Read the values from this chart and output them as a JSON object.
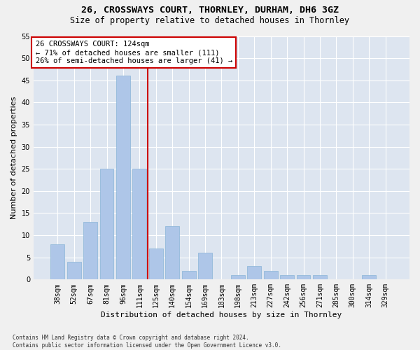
{
  "title_line1": "26, CROSSWAYS COURT, THORNLEY, DURHAM, DH6 3GZ",
  "title_line2": "Size of property relative to detached houses in Thornley",
  "xlabel": "Distribution of detached houses by size in Thornley",
  "ylabel": "Number of detached properties",
  "footnote": "Contains HM Land Registry data © Crown copyright and database right 2024.\nContains public sector information licensed under the Open Government Licence v3.0.",
  "categories": [
    "38sqm",
    "52sqm",
    "67sqm",
    "81sqm",
    "96sqm",
    "111sqm",
    "125sqm",
    "140sqm",
    "154sqm",
    "169sqm",
    "183sqm",
    "198sqm",
    "213sqm",
    "227sqm",
    "242sqm",
    "256sqm",
    "271sqm",
    "285sqm",
    "300sqm",
    "314sqm",
    "329sqm"
  ],
  "values": [
    8,
    4,
    13,
    25,
    46,
    25,
    7,
    12,
    2,
    6,
    0,
    1,
    3,
    2,
    1,
    1,
    1,
    0,
    0,
    1,
    0
  ],
  "bar_color": "#aec6e8",
  "bar_edge_color": "#8ab4d8",
  "vline_x": 5.5,
  "vline_color": "#cc0000",
  "annotation_text": "26 CROSSWAYS COURT: 124sqm\n← 71% of detached houses are smaller (111)\n26% of semi-detached houses are larger (41) →",
  "ylim": [
    0,
    55
  ],
  "yticks": [
    0,
    5,
    10,
    15,
    20,
    25,
    30,
    35,
    40,
    45,
    50,
    55
  ],
  "bg_color": "#dde5f0",
  "grid_color": "#ffffff",
  "fig_bg_color": "#f0f0f0",
  "box_facecolor": "#ffffff",
  "box_edgecolor": "#cc0000",
  "title_fontsize": 9.5,
  "subtitle_fontsize": 8.5,
  "tick_fontsize": 7,
  "ylabel_fontsize": 8,
  "xlabel_fontsize": 8,
  "annot_fontsize": 7.5,
  "footnote_fontsize": 5.5
}
